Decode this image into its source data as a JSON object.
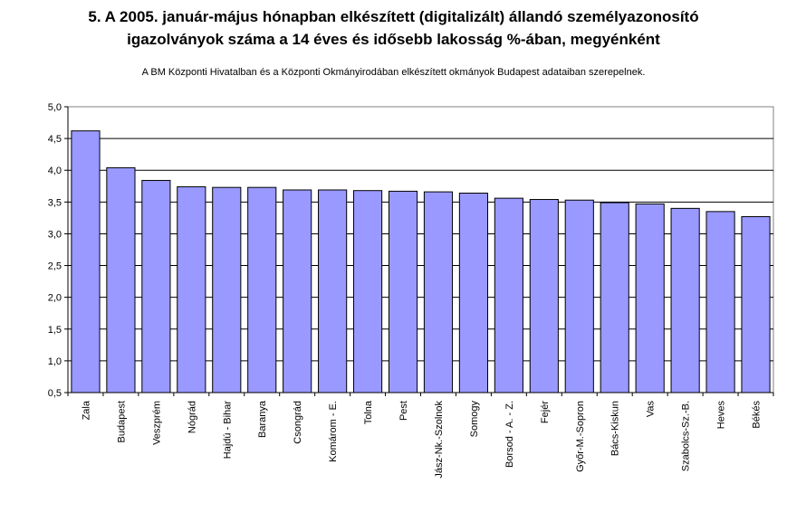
{
  "chart_data": {
    "type": "bar",
    "title": "5. A 2005. január-május hónapban elkészített (digitalizált) állandó személyazonosító igazolványok száma a 14 éves és idősebb lakosság %-ában,  megyénként",
    "title_line1": "5. A 2005. január-május hónapban elkészített (digitalizált) állandó személyazonosító",
    "title_line2": "igazolványok száma a 14 éves és idősebb lakosság %-ában,  megyénként",
    "subtitle": "A BM Központi Hivatalban és a Központi Okmányirodában elkészített  okmányok Budapest adataiban szerepelnek.",
    "xlabel": "",
    "ylabel": "",
    "ylim": [
      0.5,
      5.0
    ],
    "yticks": [
      "0,5",
      "1,0",
      "1,5",
      "2,0",
      "2,5",
      "3,0",
      "3,5",
      "4,0",
      "4,5",
      "5,0"
    ],
    "ytick_values": [
      0.5,
      1.0,
      1.5,
      2.0,
      2.5,
      3.0,
      3.5,
      4.0,
      4.5,
      5.0
    ],
    "grid": true,
    "legend": "none",
    "bar_color": "#9999ff",
    "plot_bg": "#ffffff",
    "categories": [
      "Zala",
      "Budapest",
      "Veszprém",
      "Nógrád",
      "Hajdú - Bihar",
      "Baranya",
      "Csongrád",
      "Komárom - E.",
      "Tolna",
      "Pest",
      "Jász-Nk.-Szolnok",
      "Somogy",
      "Borsod - A. - Z.",
      "Fejér",
      "Győr-M.-Sopron",
      "Bács-Kiskun",
      "Vas",
      "Szabolcs-Sz.-B.",
      "Heves",
      "Békés"
    ],
    "values": [
      4.62,
      4.04,
      3.84,
      3.74,
      3.73,
      3.73,
      3.69,
      3.69,
      3.68,
      3.67,
      3.66,
      3.64,
      3.56,
      3.54,
      3.53,
      3.49,
      3.47,
      3.4,
      3.35,
      3.27
    ]
  }
}
